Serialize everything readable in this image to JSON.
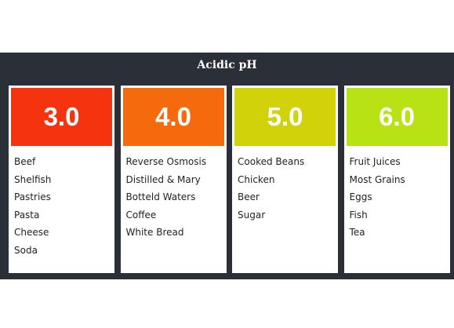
{
  "title": "Acidic pH",
  "columns": [
    {
      "ph": "3.0",
      "color": "#f5330f",
      "items": [
        "Beef",
        "Shelfish",
        "Pastries",
        "Pasta",
        "Cheese",
        "Soda"
      ]
    },
    {
      "ph": "4.0",
      "color": "#f56a0d",
      "items": [
        "Reverse Osmosis",
        "Distilled & Mary",
        "Botteld Waters",
        "Coffee",
        "White Bread"
      ]
    },
    {
      "ph": "5.0",
      "color": "#d2d20a",
      "items": [
        "Cooked Beans",
        "Chicken",
        "Beer",
        "Sugar"
      ]
    },
    {
      "ph": "6.0",
      "color": "#b7e314",
      "items": [
        "Fruit Juices",
        "Most Grains",
        "Eggs",
        "Fish",
        "Tea"
      ]
    }
  ]
}
